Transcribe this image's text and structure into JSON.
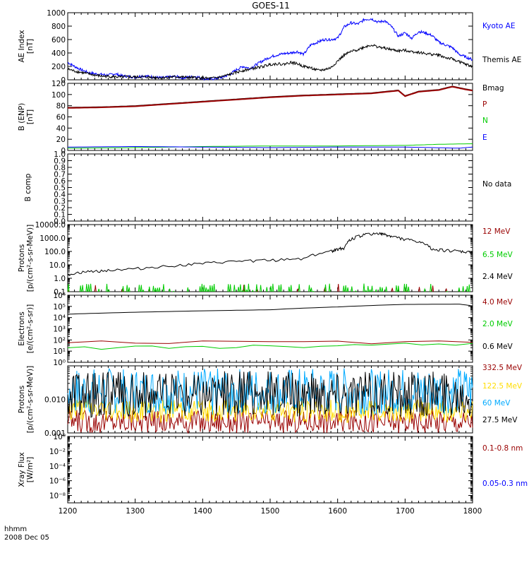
{
  "figure": {
    "title": "GOES-11",
    "x_label_top": "hhmm",
    "x_label_date": "2008 Dec 05"
  },
  "chart_data": [
    {
      "type": "line",
      "id": "ae",
      "ylabel": "AE Index [nT]",
      "ylim": [
        0,
        1000
      ],
      "yticks": [
        0,
        200,
        400,
        600,
        800,
        1000
      ],
      "ytick_labels": [
        "0",
        "200",
        "400",
        "600",
        "800",
        "1000"
      ],
      "xlim": [
        1200,
        1800
      ],
      "xticks": [
        1200,
        1300,
        1400,
        1500,
        1600,
        1700,
        1800
      ],
      "series": [
        {
          "name": "Kyoto AE",
          "color": "#0000ff",
          "x": [
            1200,
            1210,
            1220,
            1230,
            1240,
            1250,
            1260,
            1270,
            1280,
            1290,
            1300,
            1310,
            1320,
            1330,
            1340,
            1350,
            1360,
            1370,
            1380,
            1390,
            1400,
            1410,
            1420,
            1430,
            1440,
            1450,
            1460,
            1470,
            1480,
            1490,
            1500,
            1510,
            1520,
            1530,
            1540,
            1550,
            1560,
            1570,
            1580,
            1590,
            1600,
            1610,
            1620,
            1630,
            1640,
            1650,
            1660,
            1670,
            1680,
            1690,
            1700,
            1710,
            1720,
            1730,
            1740,
            1750,
            1760,
            1770,
            1780,
            1790,
            1800
          ],
          "y": [
            260,
            200,
            150,
            110,
            90,
            80,
            70,
            90,
            60,
            50,
            40,
            60,
            50,
            40,
            30,
            40,
            50,
            30,
            40,
            50,
            20,
            10,
            20,
            40,
            80,
            150,
            200,
            170,
            230,
            290,
            340,
            370,
            390,
            400,
            420,
            380,
            520,
            560,
            600,
            600,
            620,
            790,
            850,
            830,
            900,
            910,
            860,
            880,
            790,
            650,
            700,
            620,
            720,
            700,
            660,
            560,
            520,
            480,
            380,
            340,
            300
          ]
        },
        {
          "name": "Themis AE",
          "color": "#000000",
          "x": [
            1200,
            1210,
            1220,
            1230,
            1240,
            1250,
            1260,
            1270,
            1280,
            1290,
            1300,
            1310,
            1320,
            1330,
            1340,
            1350,
            1360,
            1370,
            1380,
            1390,
            1400,
            1410,
            1420,
            1430,
            1440,
            1450,
            1460,
            1470,
            1480,
            1490,
            1500,
            1510,
            1520,
            1530,
            1540,
            1550,
            1560,
            1570,
            1580,
            1590,
            1600,
            1610,
            1620,
            1630,
            1640,
            1650,
            1660,
            1670,
            1680,
            1690,
            1700,
            1710,
            1720,
            1730,
            1740,
            1750,
            1760,
            1770,
            1780,
            1790,
            1800
          ],
          "y": [
            160,
            130,
            110,
            90,
            70,
            55,
            50,
            45,
            40,
            45,
            40,
            45,
            40,
            35,
            30,
            40,
            45,
            40,
            35,
            30,
            25,
            20,
            30,
            50,
            80,
            110,
            140,
            160,
            180,
            200,
            230,
            240,
            230,
            260,
            240,
            200,
            180,
            140,
            150,
            180,
            280,
            370,
            420,
            450,
            490,
            520,
            490,
            470,
            450,
            430,
            440,
            420,
            410,
            390,
            380,
            370,
            330,
            310,
            270,
            230,
            200
          ]
        }
      ]
    },
    {
      "type": "line",
      "id": "bfield",
      "ylabel": "B (ENP) [nT]",
      "ylim": [
        0,
        120
      ],
      "yticks": [
        0,
        20,
        40,
        60,
        80,
        100,
        120
      ],
      "ytick_labels": [
        "0",
        "20",
        "40",
        "60",
        "80",
        "100",
        "120"
      ],
      "xlim": [
        1200,
        1800
      ],
      "series": [
        {
          "name": "Bmag",
          "color": "#000000",
          "x": [
            1200,
            1250,
            1300,
            1350,
            1400,
            1450,
            1500,
            1550,
            1600,
            1650,
            1690,
            1700,
            1720,
            1750,
            1770,
            1790,
            1800
          ],
          "y": [
            77,
            78,
            80,
            84,
            88,
            92,
            96,
            99,
            101,
            103,
            108,
            98,
            106,
            109,
            115,
            110,
            108
          ]
        },
        {
          "name": "P",
          "color": "#990000",
          "x": [
            1200,
            1250,
            1300,
            1350,
            1400,
            1450,
            1500,
            1550,
            1600,
            1650,
            1690,
            1700,
            1720,
            1750,
            1770,
            1790,
            1800
          ],
          "y": [
            76,
            77,
            79,
            83,
            87,
            91,
            95,
            98,
            100,
            102,
            107,
            97,
            105,
            108,
            114,
            109,
            107
          ]
        },
        {
          "name": "N",
          "color": "#00cc00",
          "x": [
            1200,
            1300,
            1400,
            1500,
            1600,
            1700,
            1750,
            1800
          ],
          "y": [
            4,
            5,
            7,
            8,
            8,
            9,
            11,
            12
          ]
        },
        {
          "name": "E",
          "color": "#0000ff",
          "x": [
            1200,
            1300,
            1400,
            1500,
            1600,
            1700,
            1780,
            1800
          ],
          "y": [
            6,
            7,
            6,
            5,
            6,
            6,
            4,
            6
          ]
        }
      ]
    },
    {
      "type": "line",
      "id": "bcomp",
      "ylabel": "B comp",
      "ylim": [
        0,
        1
      ],
      "yticks": [
        0,
        0.1,
        0.2,
        0.3,
        0.4,
        0.5,
        0.6,
        0.7,
        0.8,
        0.9,
        1.0
      ],
      "ytick_labels": [
        "0.0",
        "0.1",
        "0.2",
        "0.3",
        "0.4",
        "0.5",
        "0.6",
        "0.7",
        "0.8",
        "0.9",
        "1.0"
      ],
      "xlim": [
        1200,
        1800
      ],
      "annotation": "No data",
      "series": []
    },
    {
      "type": "line",
      "id": "protons_mev",
      "ylabel": "Protons [p/(cm2-s-sr-MeV)]",
      "log": true,
      "ylim": [
        0.1,
        10000
      ],
      "yticks": [
        0.1,
        1,
        10,
        100,
        1000,
        10000
      ],
      "ytick_labels": [
        "0.1",
        "1.0",
        "10.0",
        "100.0",
        "1000.0",
        "10000.0"
      ],
      "xlim": [
        1200,
        1800
      ],
      "series": [
        {
          "name": "12 MeV",
          "color": "#990000",
          "x": [],
          "y": []
        },
        {
          "name": "6.5 MeV",
          "color": "#00cc00",
          "x": [],
          "y": []
        },
        {
          "name": "2.4 MeV",
          "color": "#000000",
          "x": [
            1200,
            1230,
            1260,
            1300,
            1350,
            1400,
            1450,
            1500,
            1550,
            1590,
            1600,
            1610,
            1620,
            1640,
            1660,
            1670,
            1680,
            1700,
            1720,
            1740,
            1760,
            1780,
            1800
          ],
          "y": [
            2,
            3,
            4,
            5,
            8,
            12,
            18,
            22,
            30,
            100,
            150,
            180,
            800,
            1800,
            2200,
            1800,
            1300,
            800,
            500,
            150,
            120,
            100,
            80
          ]
        }
      ]
    },
    {
      "type": "line",
      "id": "electrons",
      "ylabel": "Electrons [e/(cm2-s-sr)]",
      "log": true,
      "ylim": [
        1,
        1000000
      ],
      "yticks": [
        1,
        10,
        100,
        1000,
        10000,
        100000,
        1000000
      ],
      "ytick_labels": [
        "10⁰",
        "10¹",
        "10²",
        "10³",
        "10⁴",
        "10⁵",
        "10⁶"
      ],
      "xlim": [
        1200,
        1800
      ],
      "series": [
        {
          "name": "4.0 MeV",
          "color": "#990000",
          "x": [
            1200,
            1800
          ],
          "y": [
            60,
            60
          ]
        },
        {
          "name": "2.0 MeV",
          "color": "#00cc00",
          "x": [
            1200,
            1500,
            1800
          ],
          "y": [
            20,
            25,
            50
          ]
        },
        {
          "name": "0.6 MeV",
          "color": "#000000",
          "x": [
            1200,
            1300,
            1400,
            1500,
            1600,
            1700,
            1780,
            1800
          ],
          "y": [
            20000,
            30000,
            40000,
            50000,
            90000,
            150000,
            160000,
            110000
          ]
        }
      ]
    },
    {
      "type": "line",
      "id": "protons_hi",
      "ylabel": "Protons [p/(cm2-s-sr-MeV)]",
      "log": true,
      "ylim": [
        0.001,
        0.1
      ],
      "yticks": [
        0.001,
        0.01
      ],
      "ytick_labels": [
        "0.001",
        "0.010"
      ],
      "xlim": [
        1200,
        1800
      ],
      "series": [
        {
          "name": "332.5 MeV",
          "color": "#990000",
          "level": 0.0022
        },
        {
          "name": "122.5 MeV",
          "color": "#ffdd00",
          "level": 0.0045
        },
        {
          "name": "60 MeV",
          "color": "#00aaff",
          "level": 0.017
        },
        {
          "name": "27.5 MeV",
          "color": "#000000",
          "level": 0.014
        }
      ]
    },
    {
      "type": "line",
      "id": "xray",
      "ylabel": "Xray Flux [W/m2]",
      "log": true,
      "ylim": [
        1e-09,
        1
      ],
      "yticks": [
        1e-09,
        1e-08,
        1e-07,
        1e-06,
        1e-05,
        0.0001,
        0.001,
        0.01,
        0.1,
        1
      ],
      "ytick_labels": [
        "",
        "10⁻⁸",
        "",
        "10⁻⁶",
        "",
        "10⁻⁴",
        "",
        "10⁻²",
        "",
        "10⁰"
      ],
      "xlim": [
        1200,
        1800
      ],
      "series": [
        {
          "name": "0.1-0.8 nm",
          "color": "#990000",
          "x": [],
          "y": []
        },
        {
          "name": "0.05-0.3 nm",
          "color": "#0000ff",
          "x": [],
          "y": []
        }
      ]
    }
  ],
  "xaxis": {
    "ticks": [
      1200,
      1300,
      1400,
      1500,
      1600,
      1700,
      1800
    ],
    "tick_labels": [
      "1200",
      "1300",
      "1400",
      "1500",
      "1600",
      "1700",
      "1800"
    ]
  }
}
